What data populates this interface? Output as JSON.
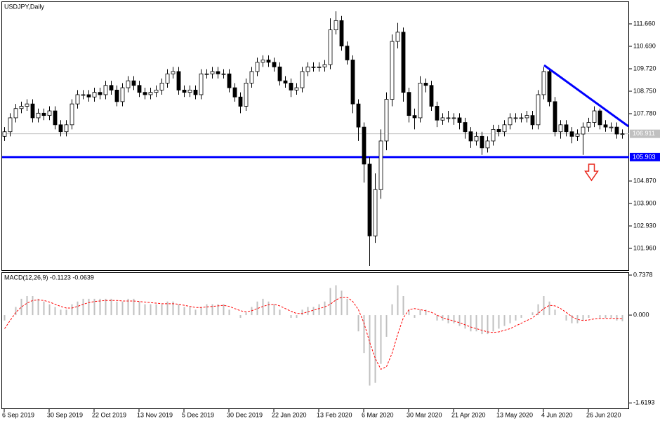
{
  "chart_data": [
    {
      "type": "candlestick",
      "title": "USDJPY,Daily",
      "categories": [
        "6 Sep 2019",
        null,
        null,
        null,
        null,
        null,
        null,
        null,
        "30 Sep 2019",
        null,
        null,
        null,
        null,
        null,
        null,
        null,
        "22 Oct 2019",
        null,
        null,
        null,
        null,
        null,
        null,
        null,
        "13 Nov 2019",
        null,
        null,
        null,
        null,
        null,
        null,
        null,
        "5 Dec 2019",
        null,
        null,
        null,
        null,
        null,
        null,
        null,
        "30 Dec 2019",
        null,
        null,
        null,
        null,
        null,
        null,
        null,
        "22 Jan 2020",
        null,
        null,
        null,
        null,
        null,
        null,
        null,
        "13 Feb 2020",
        null,
        null,
        null,
        null,
        null,
        null,
        null,
        "6 Mar 2020",
        null,
        null,
        null,
        null,
        null,
        null,
        null,
        "30 Mar 2020",
        null,
        null,
        null,
        null,
        null,
        null,
        null,
        "21 Apr 2020",
        null,
        null,
        null,
        null,
        null,
        null,
        null,
        "13 May 2020",
        null,
        null,
        null,
        null,
        null,
        null,
        null,
        "4 Jun 2020",
        null,
        null,
        null,
        null,
        null,
        null,
        null,
        "26 Jun 2020",
        null,
        null,
        null,
        null,
        null,
        null
      ],
      "open": [
        106.8,
        107.0,
        107.6,
        108.0,
        108.1,
        108.2,
        107.6,
        107.8,
        107.7,
        107.9,
        107.3,
        107.0,
        107.3,
        108.2,
        108.6,
        108.6,
        108.5,
        108.7,
        108.6,
        109.0,
        108.8,
        108.3,
        108.9,
        109.2,
        109.0,
        108.7,
        108.6,
        108.7,
        108.8,
        109.1,
        109.5,
        109.6,
        108.8,
        108.7,
        108.8,
        108.6,
        109.5,
        109.5,
        109.6,
        109.5,
        109.5,
        108.9,
        108.5,
        108.1,
        109.1,
        109.6,
        110.0,
        110.1,
        110.0,
        109.8,
        109.2,
        109.1,
        108.8,
        108.9,
        109.6,
        109.8,
        109.8,
        109.8,
        109.9,
        111.4,
        111.8,
        110.7,
        110.1,
        108.2,
        107.2,
        105.6,
        102.5,
        104.5,
        106.6,
        108.4,
        110.9,
        111.3,
        108.7,
        107.7,
        107.6,
        109.1,
        109.0,
        108.1,
        107.5,
        107.6,
        107.6,
        107.6,
        107.4,
        107.0,
        106.6,
        106.8,
        106.3,
        106.6,
        107.1,
        107.0,
        107.3,
        107.6,
        107.6,
        107.6,
        107.7,
        107.3,
        108.6,
        109.6,
        108.3,
        107.0,
        107.3,
        107.0,
        106.8,
        106.9,
        107.2,
        107.4,
        107.9,
        107.3,
        107.2,
        107.2,
        106.9
      ],
      "high": [
        107.2,
        107.8,
        108.2,
        108.3,
        108.4,
        108.4,
        108.0,
        108.0,
        108.1,
        108.1,
        107.5,
        107.5,
        108.4,
        108.8,
        108.8,
        108.8,
        108.9,
        108.9,
        109.2,
        109.2,
        109.0,
        109.1,
        109.4,
        109.4,
        109.2,
        108.9,
        108.9,
        109.0,
        109.3,
        109.7,
        109.8,
        109.8,
        109.0,
        109.0,
        109.0,
        109.7,
        109.7,
        109.8,
        109.8,
        109.7,
        109.7,
        109.1,
        108.7,
        109.3,
        109.8,
        110.2,
        110.3,
        110.3,
        110.2,
        110.0,
        109.4,
        109.3,
        109.1,
        109.8,
        110.0,
        110.0,
        110.0,
        110.1,
        111.9,
        112.2,
        112.0,
        110.9,
        110.3,
        108.4,
        107.4,
        105.9,
        105.2,
        107.1,
        108.7,
        111.2,
        111.7,
        111.5,
        108.9,
        108.0,
        109.4,
        109.3,
        109.2,
        108.3,
        107.8,
        107.9,
        107.8,
        107.8,
        107.6,
        107.2,
        107.0,
        107.0,
        106.8,
        107.3,
        107.3,
        107.5,
        107.8,
        107.8,
        107.8,
        107.9,
        107.9,
        108.8,
        109.8,
        109.7,
        108.5,
        107.5,
        107.5,
        107.2,
        107.1,
        107.4,
        107.6,
        108.1,
        108.0,
        107.5,
        107.4,
        107.4,
        107.1
      ],
      "low": [
        106.6,
        106.8,
        107.4,
        107.8,
        107.9,
        107.4,
        107.4,
        107.5,
        107.5,
        107.1,
        106.8,
        106.8,
        107.1,
        108.0,
        108.4,
        108.3,
        108.3,
        108.4,
        108.4,
        108.6,
        108.1,
        108.1,
        108.7,
        108.8,
        108.5,
        108.4,
        108.4,
        108.5,
        108.6,
        108.9,
        109.3,
        108.6,
        108.5,
        108.5,
        108.4,
        108.4,
        109.3,
        109.3,
        109.3,
        109.3,
        108.7,
        108.3,
        107.8,
        107.9,
        108.9,
        109.4,
        109.8,
        109.8,
        109.6,
        109.0,
        108.9,
        108.5,
        108.6,
        108.7,
        109.4,
        109.6,
        109.6,
        109.6,
        109.7,
        111.2,
        110.5,
        109.9,
        107.8,
        106.6,
        104.8,
        101.2,
        102.2,
        104.1,
        106.2,
        108.1,
        110.6,
        108.3,
        107.4,
        107.1,
        107.4,
        108.7,
        107.9,
        107.2,
        107.3,
        107.4,
        107.3,
        107.1,
        106.7,
        106.3,
        106.4,
        106.0,
        106.1,
        106.4,
        106.8,
        106.8,
        107.1,
        107.4,
        107.4,
        107.4,
        107.1,
        107.1,
        108.4,
        108.1,
        106.8,
        106.7,
        106.8,
        106.5,
        106.6,
        106.0,
        107.0,
        107.2,
        107.1,
        107.0,
        107.0,
        106.7,
        106.7
      ],
      "close": [
        107.0,
        107.6,
        108.0,
        108.1,
        108.2,
        107.6,
        107.8,
        107.7,
        107.9,
        107.3,
        107.0,
        107.3,
        108.2,
        108.6,
        108.6,
        108.5,
        108.7,
        108.6,
        109.0,
        108.8,
        108.3,
        108.9,
        109.2,
        109.0,
        108.7,
        108.6,
        108.7,
        108.8,
        109.1,
        109.5,
        109.6,
        108.8,
        108.7,
        108.8,
        108.6,
        109.5,
        109.5,
        109.6,
        109.5,
        109.5,
        108.9,
        108.5,
        108.1,
        109.1,
        109.6,
        110.0,
        110.1,
        110.0,
        109.8,
        109.2,
        109.1,
        108.8,
        108.9,
        109.6,
        109.8,
        109.8,
        109.8,
        109.9,
        111.4,
        111.8,
        110.7,
        110.1,
        108.2,
        107.2,
        105.6,
        102.5,
        104.5,
        106.6,
        108.4,
        110.9,
        111.3,
        108.7,
        107.7,
        107.6,
        109.1,
        109.0,
        108.1,
        107.5,
        107.6,
        107.6,
        107.6,
        107.4,
        107.0,
        106.6,
        106.8,
        106.3,
        106.6,
        107.1,
        107.0,
        107.3,
        107.6,
        107.6,
        107.6,
        107.7,
        107.3,
        108.6,
        109.6,
        108.3,
        107.0,
        107.3,
        107.0,
        106.8,
        106.9,
        107.2,
        107.4,
        107.9,
        107.3,
        107.2,
        107.2,
        106.9,
        106.911
      ],
      "ylim": [
        101.02,
        112.63
      ],
      "yticks": [
        {
          "value": 111.66,
          "label": "111.660"
        },
        {
          "value": 110.69,
          "label": "110.690"
        },
        {
          "value": 109.72,
          "label": "109.720"
        },
        {
          "value": 108.75,
          "label": "108.750"
        },
        {
          "value": 107.78,
          "label": "107.780"
        },
        {
          "value": 104.87,
          "label": "104.870"
        },
        {
          "value": 103.9,
          "label": "103.900"
        },
        {
          "value": 102.93,
          "label": "102.930"
        },
        {
          "value": 101.96,
          "label": "101.960"
        }
      ],
      "hlines": [
        {
          "value": 106.911,
          "label": "106.911",
          "color": "#c0c0c0"
        },
        {
          "value": 105.903,
          "label": "105.903",
          "color": "#0000ff"
        }
      ]
    },
    {
      "type": "combo",
      "title": "MACD(12,26,9) -0.1123 -0.0639",
      "ylim": [
        -1.72,
        0.79
      ],
      "yticks": [
        0.7378,
        {
          "value": 0,
          "label": "0.000"
        },
        -1.6193
      ],
      "series": [
        {
          "name": "MACD",
          "kind": "bar",
          "color": "#c0c0c0",
          "values": [
            -0.1,
            0.0,
            0.15,
            0.3,
            0.35,
            0.35,
            0.3,
            0.25,
            0.2,
            0.15,
            0.1,
            0.1,
            0.2,
            0.25,
            0.3,
            0.3,
            0.3,
            0.3,
            0.3,
            0.3,
            0.25,
            0.25,
            0.3,
            0.3,
            0.25,
            0.2,
            0.2,
            0.2,
            0.2,
            0.25,
            0.25,
            0.2,
            0.15,
            0.15,
            0.1,
            0.15,
            0.2,
            0.2,
            0.2,
            0.2,
            0.1,
            0.0,
            -0.05,
            0.05,
            0.15,
            0.25,
            0.3,
            0.25,
            0.2,
            0.1,
            0.0,
            -0.05,
            -0.05,
            0.1,
            0.15,
            0.15,
            0.2,
            0.25,
            0.5,
            0.55,
            0.45,
            0.3,
            0.0,
            -0.3,
            -0.7,
            -1.3,
            -1.25,
            -0.9,
            -0.4,
            0.2,
            0.55,
            0.35,
            0.1,
            -0.05,
            0.1,
            0.1,
            0.0,
            -0.1,
            -0.1,
            -0.15,
            -0.15,
            -0.2,
            -0.25,
            -0.3,
            -0.3,
            -0.35,
            -0.35,
            -0.3,
            -0.25,
            -0.2,
            -0.15,
            -0.1,
            -0.05,
            0.0,
            0.05,
            0.2,
            0.35,
            0.25,
            0.1,
            0.0,
            -0.1,
            -0.15,
            -0.15,
            -0.1,
            -0.05,
            0.0,
            -0.05,
            -0.05,
            -0.05,
            -0.1,
            -0.1123
          ]
        },
        {
          "name": "Signal",
          "kind": "line",
          "color": "#ff0000",
          "values": [
            -0.25,
            -0.1,
            0.05,
            0.15,
            0.22,
            0.27,
            0.28,
            0.27,
            0.24,
            0.2,
            0.16,
            0.13,
            0.13,
            0.16,
            0.2,
            0.23,
            0.25,
            0.26,
            0.27,
            0.27,
            0.27,
            0.26,
            0.26,
            0.26,
            0.25,
            0.24,
            0.23,
            0.22,
            0.21,
            0.21,
            0.21,
            0.2,
            0.18,
            0.16,
            0.14,
            0.14,
            0.15,
            0.16,
            0.17,
            0.18,
            0.16,
            0.12,
            0.08,
            0.06,
            0.08,
            0.12,
            0.16,
            0.19,
            0.2,
            0.17,
            0.12,
            0.07,
            0.03,
            0.03,
            0.06,
            0.09,
            0.12,
            0.15,
            0.2,
            0.28,
            0.33,
            0.33,
            0.25,
            0.1,
            -0.15,
            -0.5,
            -0.8,
            -1.0,
            -0.95,
            -0.7,
            -0.35,
            -0.05,
            0.1,
            0.12,
            0.1,
            0.08,
            0.05,
            0.0,
            -0.05,
            -0.08,
            -0.11,
            -0.14,
            -0.18,
            -0.22,
            -0.25,
            -0.28,
            -0.31,
            -0.32,
            -0.31,
            -0.28,
            -0.25,
            -0.2,
            -0.15,
            -0.1,
            -0.05,
            0.03,
            0.12,
            0.18,
            0.17,
            0.12,
            0.05,
            -0.03,
            -0.08,
            -0.1,
            -0.09,
            -0.07,
            -0.06,
            -0.06,
            -0.06,
            -0.06,
            -0.0639
          ]
        }
      ]
    }
  ]
}
